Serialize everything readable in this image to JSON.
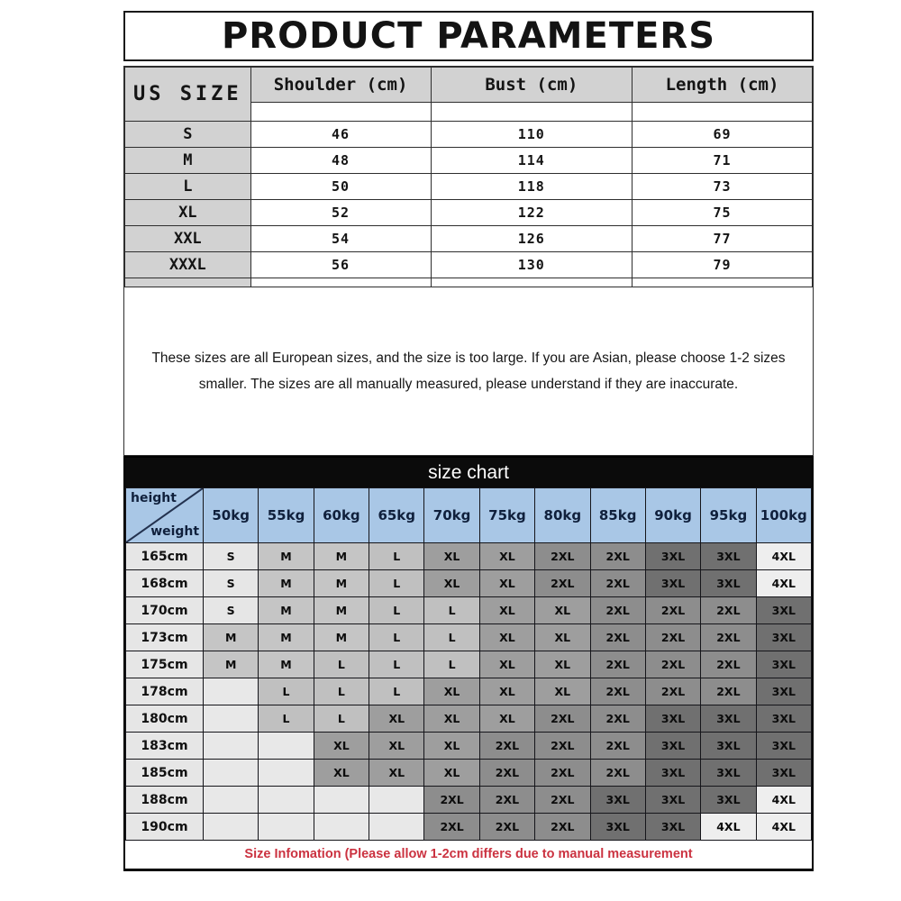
{
  "product_parameters": {
    "title": "PRODUCT PARAMETERS",
    "columns": [
      "US SIZE",
      "Shoulder (cm)",
      "Bust (cm)",
      "Length (cm)"
    ],
    "rows": [
      {
        "us_size": "S",
        "shoulder_cm": "46",
        "bust_cm": "110",
        "length_cm": "69"
      },
      {
        "us_size": "M",
        "shoulder_cm": "48",
        "bust_cm": "114",
        "length_cm": "71"
      },
      {
        "us_size": "L",
        "shoulder_cm": "50",
        "bust_cm": "118",
        "length_cm": "73"
      },
      {
        "us_size": "XL",
        "shoulder_cm": "52",
        "bust_cm": "122",
        "length_cm": "75"
      },
      {
        "us_size": "XXL",
        "shoulder_cm": "54",
        "bust_cm": "126",
        "length_cm": "77"
      },
      {
        "us_size": "XXXL",
        "shoulder_cm": "56",
        "bust_cm": "130",
        "length_cm": "79"
      }
    ],
    "note": "These sizes are all European sizes, and the size is too large. If you are Asian, please choose 1-2 sizes smaller. The sizes are all manually measured, please understand if they are inaccurate."
  },
  "size_chart": {
    "title": "size chart",
    "corner": {
      "top": "height",
      "bottom": "weight"
    },
    "weight_headers": [
      "50kg",
      "55kg",
      "60kg",
      "65kg",
      "70kg",
      "75kg",
      "80kg",
      "85kg",
      "90kg",
      "95kg",
      "100kg"
    ],
    "rows": [
      {
        "height": "165cm",
        "sizes": [
          "S",
          "M",
          "M",
          "L",
          "XL",
          "XL",
          "2XL",
          "2XL",
          "3XL",
          "3XL",
          "4XL"
        ]
      },
      {
        "height": "168cm",
        "sizes": [
          "S",
          "M",
          "M",
          "L",
          "XL",
          "XL",
          "2XL",
          "2XL",
          "3XL",
          "3XL",
          "4XL"
        ]
      },
      {
        "height": "170cm",
        "sizes": [
          "S",
          "M",
          "M",
          "L",
          "L",
          "XL",
          "XL",
          "2XL",
          "2XL",
          "2XL",
          "3XL"
        ]
      },
      {
        "height": "173cm",
        "sizes": [
          "M",
          "M",
          "M",
          "L",
          "L",
          "XL",
          "XL",
          "2XL",
          "2XL",
          "2XL",
          "3XL"
        ]
      },
      {
        "height": "175cm",
        "sizes": [
          "M",
          "M",
          "L",
          "L",
          "L",
          "XL",
          "XL",
          "2XL",
          "2XL",
          "2XL",
          "3XL"
        ]
      },
      {
        "height": "178cm",
        "sizes": [
          "",
          "L",
          "L",
          "L",
          "XL",
          "XL",
          "XL",
          "2XL",
          "2XL",
          "2XL",
          "3XL"
        ]
      },
      {
        "height": "180cm",
        "sizes": [
          "",
          "L",
          "L",
          "XL",
          "XL",
          "XL",
          "2XL",
          "2XL",
          "3XL",
          "3XL",
          "3XL"
        ]
      },
      {
        "height": "183cm",
        "sizes": [
          "",
          "",
          "XL",
          "XL",
          "XL",
          "2XL",
          "2XL",
          "2XL",
          "3XL",
          "3XL",
          "3XL"
        ]
      },
      {
        "height": "185cm",
        "sizes": [
          "",
          "",
          "XL",
          "XL",
          "XL",
          "2XL",
          "2XL",
          "2XL",
          "3XL",
          "3XL",
          "3XL"
        ]
      },
      {
        "height": "188cm",
        "sizes": [
          "",
          "",
          "",
          "",
          "2XL",
          "2XL",
          "2XL",
          "3XL",
          "3XL",
          "3XL",
          "4XL"
        ]
      },
      {
        "height": "190cm",
        "sizes": [
          "",
          "",
          "",
          "",
          "2XL",
          "2XL",
          "2XL",
          "3XL",
          "3XL",
          "4XL",
          "4XL"
        ]
      }
    ],
    "footer": "Size Infomation  (Please allow 1-2cm differs due to manual measurement",
    "colors": {
      "header_blue": "#a9c7e6",
      "title_bar_black": "#0b0b0b",
      "footer_red": "#cb3240",
      "cell_shades": {
        "S": "#e6e6e6",
        "M": "#c5c5c5",
        "L": "#c0c0c0",
        "XL": "#9e9e9e",
        "2XL": "#8d8d8d",
        "3XL": "#707070",
        "4XL": "#eeeeee",
        "": "#e8e8e8"
      }
    }
  }
}
